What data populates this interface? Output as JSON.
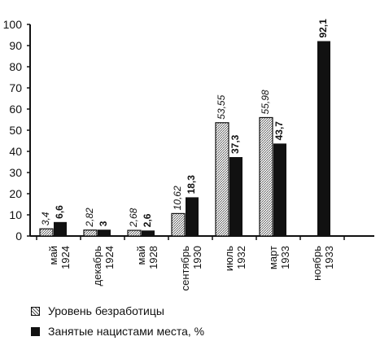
{
  "chart_data": {
    "type": "bar",
    "categories": [
      [
        "май",
        "1924"
      ],
      [
        "декабрь",
        "1924"
      ],
      [
        "май",
        "1928"
      ],
      [
        "сентябрь",
        "1930"
      ],
      [
        "июль",
        "1932"
      ],
      [
        "март",
        "1933"
      ],
      [
        "ноябрь",
        "1933"
      ]
    ],
    "series": [
      {
        "name": "Уровень безработицы",
        "values": [
          3.4,
          2.82,
          2.68,
          10.62,
          53.55,
          55.98,
          null
        ],
        "labels": [
          "3,4",
          "2,82",
          "2,68",
          "10,62",
          "53,55",
          "55,98",
          ""
        ]
      },
      {
        "name": "Занятые нацистами места, %",
        "values": [
          6.6,
          3,
          2.6,
          18.3,
          37.3,
          43.7,
          92.1
        ],
        "labels": [
          "6,6",
          "3",
          "2,6",
          "18,3",
          "37,3",
          "43,7",
          "92,1"
        ]
      }
    ],
    "yticks": [
      "0",
      "10",
      "20",
      "30",
      "40",
      "50",
      "60",
      "70",
      "80",
      "90",
      "100"
    ],
    "ylim": [
      0,
      100
    ],
    "grid": false,
    "legend_position": "bottom-left",
    "colors": {
      "unemployment": "#cfcfcf",
      "nazi_seats": "#111111",
      "axis": "#111111"
    }
  },
  "legend": {
    "unemployment": "Уровень безработицы",
    "nazi_seats": "Занятые нацистами места, %"
  }
}
